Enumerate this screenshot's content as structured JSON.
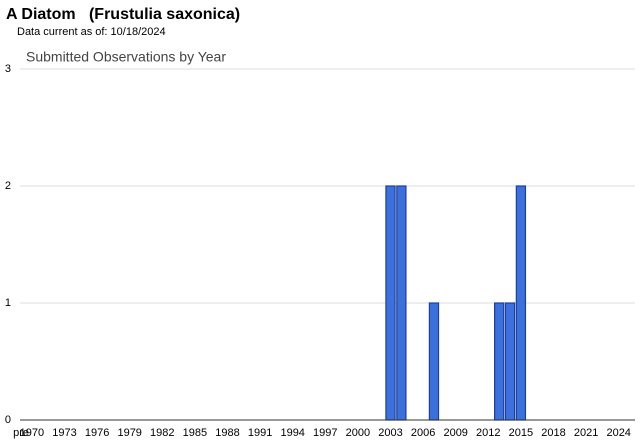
{
  "chart_data": {
    "type": "bar",
    "title": "A Diatom   (Frustulia saxonica)",
    "subtitle": "Data current as of: 10/18/2024",
    "chart_title": "Submitted Observations by Year",
    "categories": [
      "pre",
      "1970",
      null,
      null,
      "1973",
      null,
      null,
      "1976",
      null,
      null,
      "1979",
      null,
      null,
      "1982",
      null,
      null,
      "1985",
      null,
      null,
      "1988",
      null,
      null,
      "1991",
      null,
      null,
      "1994",
      null,
      null,
      "1997",
      null,
      null,
      "2000",
      null,
      null,
      "2003",
      null,
      null,
      "2006",
      null,
      null,
      "2009",
      null,
      null,
      "2012",
      null,
      null,
      "2015",
      null,
      null,
      "2018",
      null,
      null,
      "2021",
      null,
      null,
      "2024",
      null
    ],
    "values": [
      0,
      0,
      0,
      0,
      0,
      0,
      0,
      0,
      0,
      0,
      0,
      0,
      0,
      0,
      0,
      0,
      0,
      0,
      0,
      0,
      0,
      0,
      0,
      0,
      0,
      0,
      0,
      0,
      0,
      0,
      0,
      0,
      0,
      0,
      2,
      2,
      0,
      0,
      1,
      0,
      0,
      0,
      0,
      0,
      1,
      1,
      2,
      0,
      0,
      0,
      0,
      0,
      0,
      0,
      0,
      0,
      0
    ],
    "color": "#3c70dc",
    "ylim": [
      0,
      3
    ],
    "yticks": [
      0,
      1,
      2,
      3
    ],
    "grid": true
  }
}
